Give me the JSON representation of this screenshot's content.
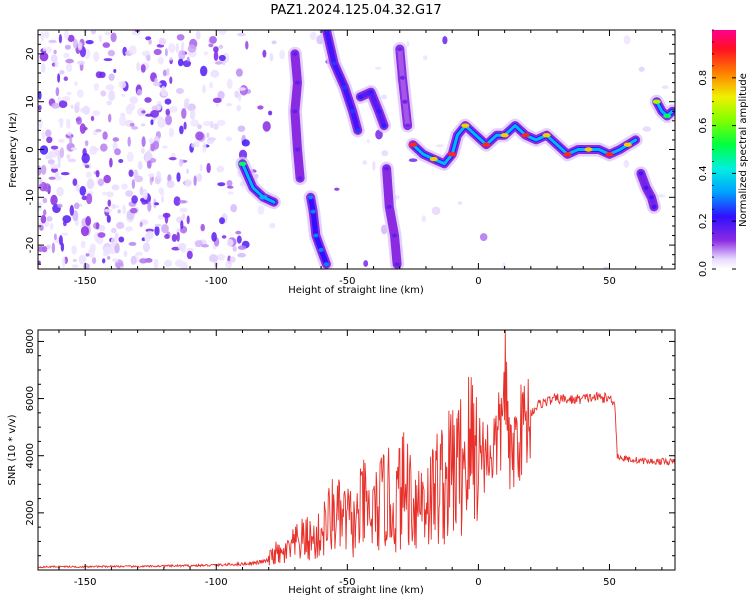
{
  "title": "PAZ1.2024.125.04.32.G17",
  "colors": {
    "snr_line": "#e8302a",
    "background": "#ffffff",
    "axis": "#000000"
  },
  "chart_data": [
    {
      "type": "heatmap",
      "xlabel": "Height of straight line (km)",
      "ylabel": "Frequency (Hz)",
      "xlim": [
        -168,
        75
      ],
      "ylim": [
        -25,
        25
      ],
      "x_ticks": [
        -150,
        -100,
        -50,
        0,
        50
      ],
      "y_ticks": [
        -20,
        -10,
        0,
        10,
        20
      ],
      "colorbar": {
        "label": "Normalized spectral amplitude",
        "range": [
          0.0,
          1.0
        ],
        "ticks": [
          "0.0",
          "0.2",
          "0.4",
          "0.6",
          "0.8"
        ],
        "colormap": "rainbow (white/purple → blue → cyan → green → yellow → orange → red → magenta)"
      },
      "ridges": [
        {
          "points": [
            [
              -90,
              -3
            ],
            [
              -86,
              -8
            ],
            [
              -82,
              -10
            ],
            [
              -78,
              -11
            ]
          ],
          "amplitude": 0.35
        },
        {
          "points": [
            [
              -70,
              20
            ],
            [
              -69,
              14
            ],
            [
              -70,
              8
            ],
            [
              -69,
              0
            ],
            [
              -68,
              -6
            ]
          ],
          "amplitude": 0.12
        },
        {
          "points": [
            [
              -64,
              -10
            ],
            [
              -63,
              -13
            ],
            [
              -62,
              -18
            ],
            [
              -60,
              -21
            ],
            [
              -58,
              -24
            ]
          ],
          "amplitude": 0.25
        },
        {
          "points": [
            [
              -58,
              25
            ],
            [
              -55,
              18
            ],
            [
              -51,
              13
            ],
            [
              -48,
              8
            ],
            [
              -46,
              4
            ]
          ],
          "amplitude": 0.2
        },
        {
          "points": [
            [
              -45,
              11
            ],
            [
              -41,
              12
            ],
            [
              -38,
              8
            ],
            [
              -36,
              5
            ]
          ],
          "amplitude": 0.18
        },
        {
          "points": [
            [
              -30,
              21
            ],
            [
              -29,
              15
            ],
            [
              -28,
              10
            ],
            [
              -27,
              5
            ]
          ],
          "amplitude": 0.1
        },
        {
          "points": [
            [
              -35,
              -4
            ],
            [
              -34,
              -12
            ],
            [
              -32,
              -18
            ],
            [
              -31,
              -24
            ]
          ],
          "amplitude": 0.12
        },
        {
          "points": [
            [
              -25,
              1
            ],
            [
              -21,
              -1
            ],
            [
              -17,
              -2
            ],
            [
              -13,
              -3
            ],
            [
              -10,
              -1
            ],
            [
              -8,
              3
            ],
            [
              -5,
              5
            ],
            [
              -1,
              3
            ],
            [
              3,
              1
            ],
            [
              7,
              3
            ],
            [
              10,
              3
            ],
            [
              14,
              5
            ],
            [
              18,
              3
            ],
            [
              22,
              2
            ],
            [
              26,
              3
            ],
            [
              30,
              1
            ],
            [
              34,
              -1
            ],
            [
              38,
              0
            ],
            [
              42,
              0
            ],
            [
              46,
              0
            ],
            [
              50,
              -1
            ],
            [
              54,
              0
            ],
            [
              57,
              1
            ],
            [
              60,
              2
            ]
          ],
          "amplitude": 0.75
        },
        {
          "points": [
            [
              62,
              -5
            ],
            [
              64,
              -8
            ],
            [
              66,
              -10
            ],
            [
              67,
              -12
            ]
          ],
          "amplitude": 0.15
        },
        {
          "points": [
            [
              68,
              10
            ],
            [
              70,
              8
            ],
            [
              72,
              7
            ],
            [
              74,
              8
            ]
          ],
          "amplitude": 0.5
        }
      ]
    },
    {
      "type": "line",
      "xlabel": "Height of straight line (km)",
      "ylabel": "SNR (10 * v/v)",
      "xlim": [
        -168,
        75
      ],
      "ylim": [
        0,
        8400
      ],
      "x_ticks": [
        -150,
        -100,
        -50,
        0,
        50
      ],
      "y_ticks": [
        2000,
        4000,
        6000,
        8000
      ],
      "series": [
        {
          "x": [
            -168,
            -160,
            -150,
            -140,
            -130,
            -120,
            -110,
            -100,
            -95,
            -90,
            -85,
            -80,
            -78,
            -75,
            -72,
            -70,
            -66,
            -62,
            -58,
            -55,
            -52,
            -50,
            -47,
            -44,
            -41,
            -38,
            -35,
            -32,
            -30,
            -27,
            -24,
            -21,
            -18,
            -15,
            -12,
            -10,
            -8,
            -5,
            -3,
            0,
            3,
            6,
            8,
            9,
            10,
            11,
            12,
            14,
            17,
            20,
            23,
            26,
            30,
            35,
            40,
            45,
            50,
            52,
            53,
            55,
            60,
            65,
            70,
            75
          ],
          "y": [
            100,
            120,
            110,
            130,
            120,
            140,
            150,
            170,
            190,
            210,
            250,
            330,
            600,
            500,
            700,
            900,
            1100,
            1000,
            1600,
            2000,
            1700,
            1800,
            1500,
            2300,
            1800,
            2200,
            2600,
            2000,
            2700,
            2900,
            2300,
            2600,
            2500,
            3100,
            3000,
            3600,
            3400,
            4100,
            4200,
            4300,
            4000,
            4300,
            4700,
            5000,
            7400,
            5200,
            3700,
            4500,
            5000,
            5500,
            5800,
            5900,
            6000,
            5950,
            6000,
            6050,
            6000,
            5900,
            4000,
            3900,
            3850,
            3800,
            3800,
            3780
          ]
        }
      ]
    }
  ]
}
